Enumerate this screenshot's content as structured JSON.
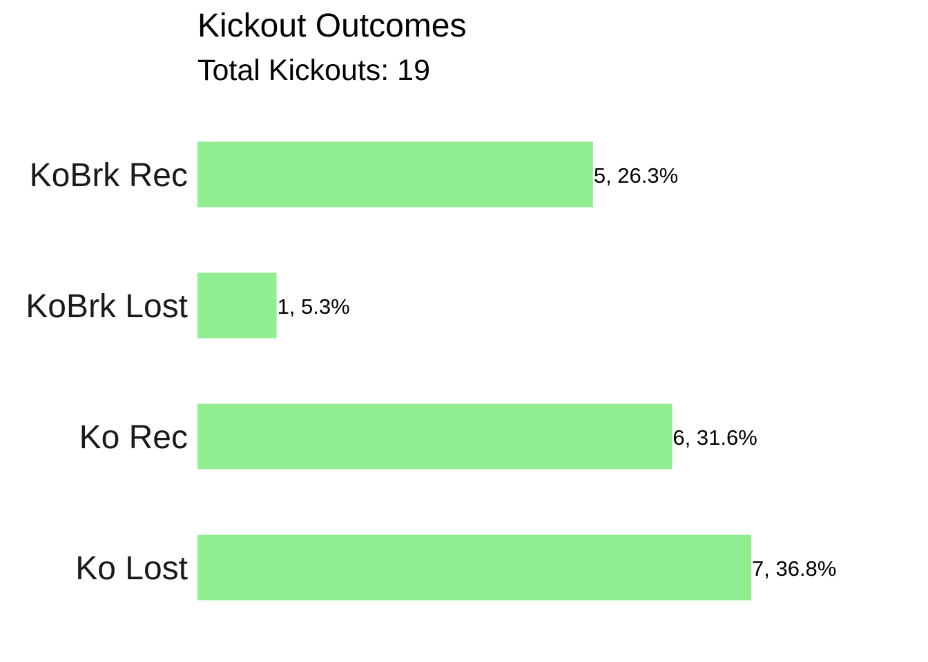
{
  "chart_data": {
    "type": "bar",
    "orientation": "horizontal",
    "title": "Kickout Outcomes",
    "subtitle": "Total Kickouts: 19",
    "categories": [
      "KoBrk Rec",
      "KoBrk Lost",
      "Ko Rec",
      "Ko Lost"
    ],
    "values": [
      5,
      1,
      6,
      7
    ],
    "data_labels": [
      "5, 26.3%",
      "1, 5.3%",
      "6, 31.6%",
      "7, 36.8%"
    ],
    "xlim": [
      0,
      7
    ],
    "grid": false,
    "legend": "none",
    "bar_color": "#90EE90"
  }
}
